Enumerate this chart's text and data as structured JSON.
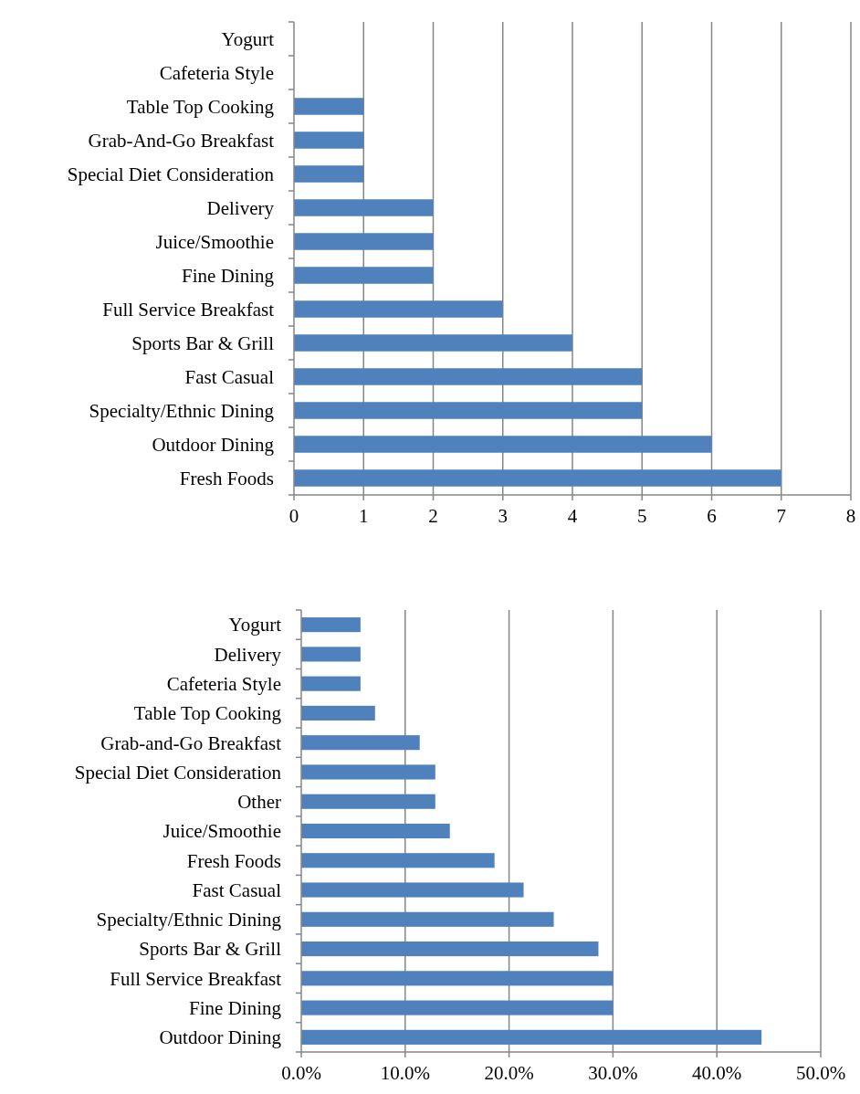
{
  "chart_data": [
    {
      "type": "bar",
      "orientation": "horizontal",
      "categories": [
        "Yogurt",
        "Cafeteria Style",
        "Table Top Cooking",
        "Grab-And-Go Breakfast",
        "Special Diet Consideration",
        "Delivery",
        "Juice/Smoothie",
        "Fine Dining",
        "Full Service Breakfast",
        "Sports Bar & Grill",
        "Fast Casual",
        "Specialty/Ethnic Dining",
        "Outdoor Dining",
        "Fresh Foods"
      ],
      "values": [
        0,
        0,
        1,
        1,
        1,
        2,
        2,
        2,
        3,
        4,
        5,
        5,
        6,
        7
      ],
      "color": "#4f81bd",
      "xlim": [
        0,
        8
      ],
      "xticks": [
        0,
        1,
        2,
        3,
        4,
        5,
        6,
        7,
        8
      ],
      "grid": "x"
    },
    {
      "type": "bar",
      "orientation": "horizontal",
      "categories": [
        "Yogurt",
        "Delivery",
        "Cafeteria Style",
        "Table Top Cooking",
        "Grab-and-Go Breakfast",
        "Special Diet Consideration",
        "Other",
        "Juice/Smoothie",
        "Fresh Foods",
        "Fast Casual",
        "Specialty/Ethnic Dining",
        "Sports Bar & Grill",
        "Full Service Breakfast",
        "Fine Dining",
        "Outdoor Dining"
      ],
      "values": [
        5.7,
        5.7,
        5.7,
        7.1,
        11.4,
        12.9,
        12.9,
        14.3,
        18.6,
        21.4,
        24.3,
        28.6,
        30.0,
        30.0,
        44.3
      ],
      "color": "#4f81bd",
      "xlim": [
        0,
        50
      ],
      "xticks": [
        {
          "value": 0,
          "label": "0.0%"
        },
        {
          "value": 10,
          "label": "10.0%"
        },
        {
          "value": 20,
          "label": "20.0%"
        },
        {
          "value": 30,
          "label": "30.0%"
        },
        {
          "value": 40,
          "label": "40.0%"
        },
        {
          "value": 50,
          "label": "50.0%"
        }
      ],
      "grid": "x"
    }
  ]
}
